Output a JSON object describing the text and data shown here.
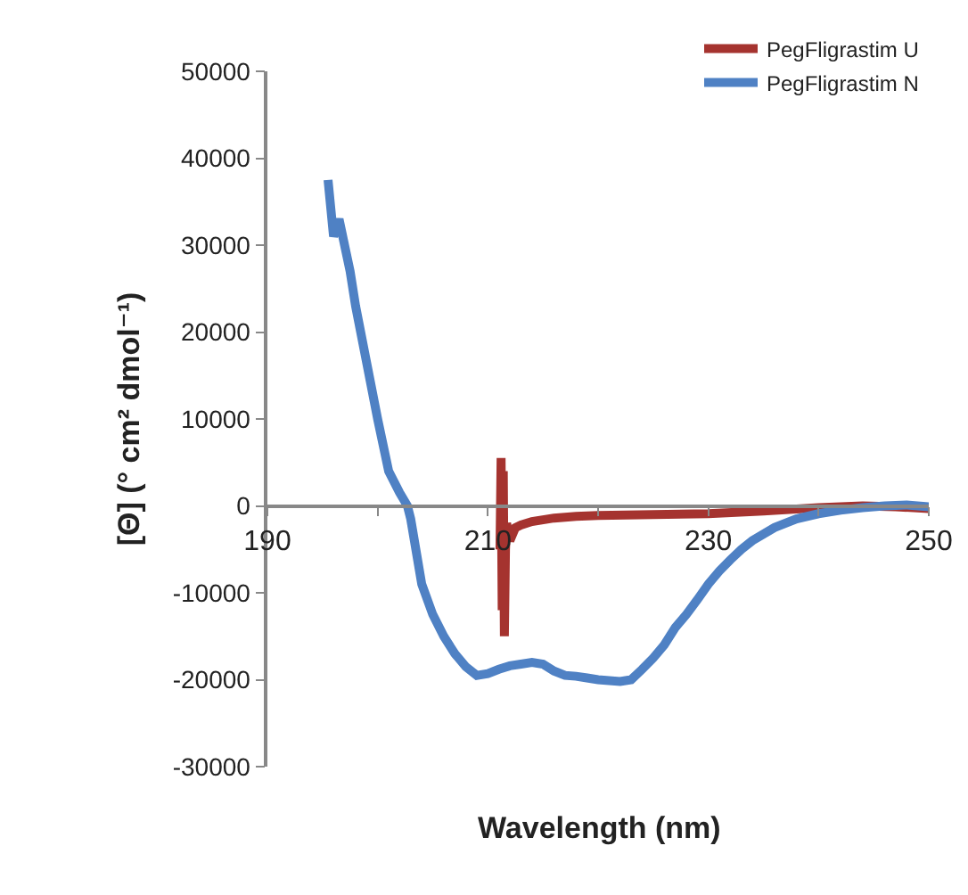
{
  "chart_data": {
    "type": "line",
    "xlabel": "Wavelength (nm)",
    "ylabel": "[Θ] (° cm² dmol⁻¹)",
    "xlim": [
      190,
      250
    ],
    "xticks": [
      190,
      {
        "value": 200,
        "label": null
      },
      210,
      {
        "value": 220,
        "label": null
      },
      230,
      {
        "value": 240,
        "label": null
      },
      250
    ],
    "ylim": [
      -30000,
      50000
    ],
    "yticks": [
      -30000,
      -20000,
      -10000,
      0,
      10000,
      20000,
      30000,
      40000,
      50000
    ],
    "grid": false,
    "legend": "top right",
    "marker": "none",
    "line_style": "solid",
    "series": [
      {
        "name": "PegFligrastim U",
        "color": "#a5332f",
        "x": [
          211.1,
          211.2,
          211.3,
          211.4,
          211.5,
          211.6,
          211.7,
          212,
          212.5,
          213,
          214,
          216,
          218,
          220,
          225,
          230,
          235,
          240,
          244,
          247,
          250
        ],
        "values": [
          -5000,
          5500,
          -12000,
          4000,
          -15000,
          -5000,
          -2000,
          -4000,
          -2500,
          -2200,
          -1800,
          -1400,
          -1200,
          -1100,
          -1000,
          -900,
          -600,
          -200,
          0,
          -100,
          -300
        ]
      },
      {
        "name": "PegFligrastim N",
        "color": "#4f81c4",
        "x": [
          195.5,
          196,
          196.5,
          197,
          197.5,
          198,
          199,
          200,
          201,
          202,
          202.7,
          203,
          204,
          205,
          206,
          207,
          208,
          209,
          210,
          211,
          212,
          213,
          214,
          215,
          216,
          217,
          218,
          219,
          220,
          221,
          222,
          223,
          224,
          225,
          226,
          227,
          228,
          229,
          230,
          231,
          232,
          233,
          234,
          236,
          238,
          240,
          242,
          244,
          246,
          248,
          250
        ],
        "values": [
          37500,
          31000,
          33000,
          30000,
          27000,
          23000,
          16500,
          10000,
          4000,
          1500,
          0,
          -1500,
          -9000,
          -12500,
          -15000,
          -17000,
          -18500,
          -19500,
          -19300,
          -18800,
          -18400,
          -18200,
          -18000,
          -18200,
          -19000,
          -19500,
          -19600,
          -19800,
          -20000,
          -20100,
          -20200,
          -20000,
          -18800,
          -17500,
          -16000,
          -14000,
          -12500,
          -10800,
          -9000,
          -7500,
          -6200,
          -5000,
          -4000,
          -2500,
          -1500,
          -900,
          -500,
          -200,
          0,
          100,
          -100
        ]
      }
    ]
  }
}
